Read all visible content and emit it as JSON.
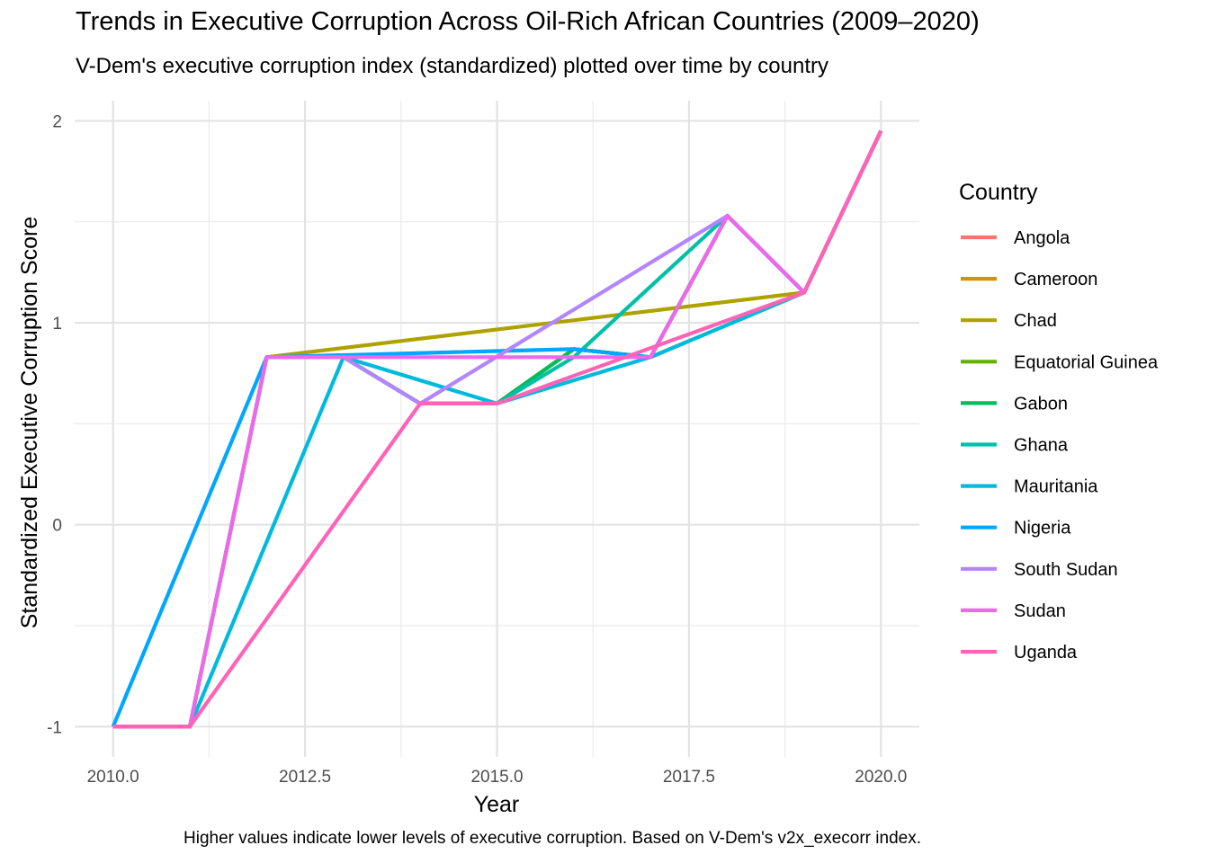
{
  "chart_data": {
    "type": "line",
    "title": "Trends in Executive Corruption Across Oil-Rich African Countries (2009–2020)",
    "subtitle": "V-Dem's executive corruption index (standardized) plotted over time by country",
    "caption": "Higher values indicate lower levels of executive corruption. Based on V-Dem's v2x_execorr index.",
    "xlabel": "Year",
    "ylabel": "Standardized Executive Corruption Score",
    "xlim": [
      2009.5,
      2020.5
    ],
    "ylim": [
      -1.15,
      2.1
    ],
    "x_ticks": [
      2010,
      2012.5,
      2015,
      2017.5,
      2020
    ],
    "x_tick_labels": [
      "2010.0",
      "2012.5",
      "2015.0",
      "2017.5",
      "2020.0"
    ],
    "y_ticks": [
      -1,
      0,
      1,
      2
    ],
    "y_tick_labels": [
      "-1",
      "0",
      "1",
      "2"
    ],
    "legend_title": "Country",
    "legend_position": "right",
    "grid": true,
    "series": [
      {
        "name": "Angola",
        "color": "#F8766D",
        "points": [
          [
            2010,
            -1
          ],
          [
            2011,
            -1
          ],
          [
            2012,
            0.83
          ],
          [
            2013,
            0.83
          ],
          [
            2014,
            0.6
          ],
          [
            2015,
            0.6
          ],
          [
            2016,
            0.87
          ],
          [
            2017,
            0.83
          ],
          [
            2018,
            1.53
          ],
          [
            2019,
            1.15
          ],
          [
            2020,
            1.95
          ]
        ]
      },
      {
        "name": "Cameroon",
        "color": "#DB8E00",
        "points": [
          [
            2010,
            -1
          ],
          [
            2011,
            -1
          ],
          [
            2012,
            0.83
          ],
          [
            2013,
            0.83
          ],
          [
            2014,
            0.6
          ],
          [
            2015,
            0.6
          ],
          [
            2016,
            0.87
          ],
          [
            2017,
            0.83
          ],
          [
            2018,
            1.53
          ],
          [
            2019,
            1.15
          ],
          [
            2020,
            1.95
          ]
        ]
      },
      {
        "name": "Chad",
        "color": "#AEA200",
        "points": [
          [
            2010,
            -1
          ],
          [
            2011,
            -1
          ],
          [
            2012,
            0.83
          ],
          [
            2019,
            1.15
          ],
          [
            2020,
            1.95
          ]
        ]
      },
      {
        "name": "Equatorial Guinea",
        "color": "#64B200",
        "points": [
          [
            2010,
            -1
          ],
          [
            2011,
            -1
          ],
          [
            2012,
            0.83
          ],
          [
            2013,
            0.83
          ],
          [
            2014,
            0.6
          ],
          [
            2015,
            0.6
          ],
          [
            2016,
            0.87
          ],
          [
            2017,
            0.83
          ],
          [
            2019,
            1.15
          ],
          [
            2020,
            1.95
          ]
        ]
      },
      {
        "name": "Gabon",
        "color": "#00BD5C",
        "points": [
          [
            2010,
            -1
          ],
          [
            2011,
            -1
          ],
          [
            2012,
            0.83
          ],
          [
            2013,
            0.83
          ],
          [
            2014,
            0.6
          ],
          [
            2015,
            0.6
          ],
          [
            2016,
            0.87
          ],
          [
            2017,
            0.83
          ],
          [
            2018,
            1.53
          ],
          [
            2019,
            1.15
          ],
          [
            2020,
            1.95
          ]
        ]
      },
      {
        "name": "Ghana",
        "color": "#00C1A7",
        "points": [
          [
            2010,
            -1
          ],
          [
            2011,
            -1
          ],
          [
            2012,
            0.83
          ],
          [
            2013,
            0.83
          ],
          [
            2014,
            0.6
          ],
          [
            2015,
            0.6
          ],
          [
            2016,
            0.83
          ],
          [
            2018,
            1.53
          ],
          [
            2019,
            1.15
          ],
          [
            2020,
            1.95
          ]
        ]
      },
      {
        "name": "Mauritania",
        "color": "#00BADE",
        "points": [
          [
            2010,
            -1
          ],
          [
            2011,
            -1
          ],
          [
            2013,
            0.83
          ],
          [
            2015,
            0.6
          ],
          [
            2017,
            0.83
          ],
          [
            2019,
            1.15
          ],
          [
            2020,
            1.95
          ]
        ]
      },
      {
        "name": "Nigeria",
        "color": "#00A6FF",
        "points": [
          [
            2010,
            -1
          ],
          [
            2012,
            0.83
          ],
          [
            2015,
            0.86
          ],
          [
            2016,
            0.87
          ],
          [
            2017,
            0.83
          ],
          [
            2018,
            1.53
          ],
          [
            2019,
            1.15
          ],
          [
            2020,
            1.95
          ]
        ]
      },
      {
        "name": "South Sudan",
        "color": "#B385FF",
        "points": [
          [
            2010,
            -1
          ],
          [
            2011,
            -1
          ],
          [
            2012,
            0.83
          ],
          [
            2013,
            0.83
          ],
          [
            2014,
            0.6
          ],
          [
            2018,
            1.53
          ],
          [
            2019,
            1.15
          ],
          [
            2020,
            1.95
          ]
        ]
      },
      {
        "name": "Sudan",
        "color": "#EF67EB",
        "points": [
          [
            2010,
            -1
          ],
          [
            2011,
            -1
          ],
          [
            2012,
            0.83
          ],
          [
            2017,
            0.83
          ],
          [
            2018,
            1.53
          ],
          [
            2019,
            1.15
          ],
          [
            2020,
            1.95
          ]
        ]
      },
      {
        "name": "Uganda",
        "color": "#FF63B6",
        "points": [
          [
            2010,
            -1
          ],
          [
            2011,
            -1
          ],
          [
            2014,
            0.6
          ],
          [
            2015,
            0.6
          ],
          [
            2019,
            1.15
          ],
          [
            2020,
            1.95
          ]
        ]
      }
    ]
  }
}
